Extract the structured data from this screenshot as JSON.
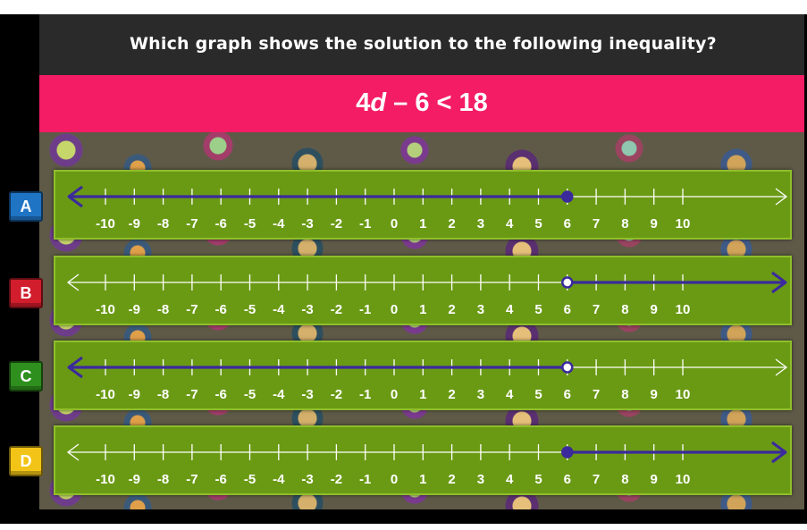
{
  "question": "Which graph shows the solution to the following inequality?",
  "equation": {
    "coef": "4",
    "var": "d",
    "rest": " – 6 < 18"
  },
  "colors": {
    "header_bg": "#2a2a2a",
    "equation_bg": "#f41c64",
    "panel_bg": "#6a9a14",
    "line_color": "#3b2a9c",
    "tab_A": "#1f74c4",
    "tab_B": "#d11d2c",
    "tab_C": "#2f8f1e",
    "tab_D": "#f2c417"
  },
  "tick_labels": [
    "-10",
    "-9",
    "-8",
    "-7",
    "-6",
    "-5",
    "-4",
    "-3",
    "-2",
    "-1",
    "0",
    "1",
    "2",
    "3",
    "4",
    "5",
    "6",
    "7",
    "8",
    "9",
    "10"
  ],
  "options": [
    {
      "letter": "A",
      "point": 6,
      "closed": true,
      "direction": "left"
    },
    {
      "letter": "B",
      "point": 6,
      "closed": false,
      "direction": "right"
    },
    {
      "letter": "C",
      "point": 6,
      "closed": false,
      "direction": "left"
    },
    {
      "letter": "D",
      "point": 6,
      "closed": true,
      "direction": "right"
    }
  ]
}
